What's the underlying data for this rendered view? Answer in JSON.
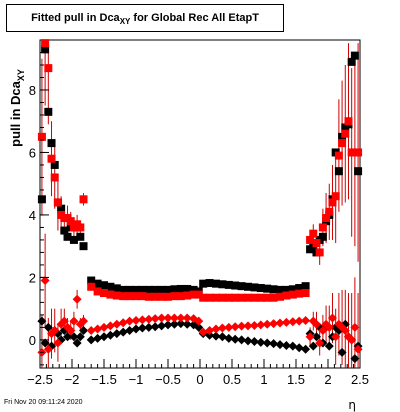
{
  "title": {
    "prefix": "Fitted pull in Dca",
    "subscript": "XY",
    "suffix": " for Global Rec All EtapT"
  },
  "footer_timestamp": "Fri Nov 20 09:11:24 2020",
  "chart_data": {
    "type": "scatter",
    "xlabel": "η",
    "ylabel": "pull in Dca",
    "ylabel_subscript": "XY",
    "xlim": [
      -2.5,
      2.5
    ],
    "ylim": [
      -0.9,
      9.6
    ],
    "xticks": [
      -2.5,
      -2,
      -1.5,
      -1,
      -0.5,
      0,
      0.5,
      1,
      1.5,
      2,
      2.5
    ],
    "xtick_labels": [
      "−2.5",
      "−2",
      "−1.5",
      "−1",
      "−0.5",
      "0",
      "0.5",
      "1",
      "1.5",
      "2",
      "2.5"
    ],
    "yticks": [
      0,
      2,
      4,
      6,
      8
    ],
    "ytick_labels": [
      "0",
      "2",
      "4",
      "6",
      "8"
    ],
    "grid": false,
    "legend": "none",
    "colors": {
      "black_series": "#000000",
      "red_series": "#ff0000",
      "error_bars": "#cc0000"
    },
    "series": [
      {
        "color": "#000000",
        "marker": "square",
        "x": [
          -2.47,
          -2.42,
          -2.37,
          -2.32,
          -2.27,
          -2.22,
          -2.17,
          -2.12,
          -2.07,
          -2.02,
          -1.97,
          -1.92,
          -1.87,
          -1.82,
          -1.7,
          -1.6,
          -1.5,
          -1.4,
          -1.3,
          -1.2,
          -1.1,
          -1.0,
          -0.9,
          -0.8,
          -0.7,
          -0.6,
          -0.5,
          -0.4,
          -0.3,
          -0.2,
          -0.1,
          -0.02,
          0.05,
          0.15,
          0.25,
          0.35,
          0.45,
          0.55,
          0.65,
          0.75,
          0.85,
          0.95,
          1.05,
          1.15,
          1.25,
          1.35,
          1.45,
          1.55,
          1.65,
          1.72,
          1.77,
          1.82,
          1.87,
          1.92,
          1.97,
          2.02,
          2.07,
          2.12,
          2.17,
          2.22,
          2.27,
          2.32,
          2.37,
          2.42,
          2.47
        ],
        "y": [
          4.5,
          9.3,
          7.3,
          6.3,
          5.6,
          4.4,
          4.2,
          3.5,
          3.3,
          3.6,
          3.2,
          3.6,
          3.3,
          3.0,
          1.9,
          1.8,
          1.75,
          1.7,
          1.65,
          1.6,
          1.6,
          1.6,
          1.6,
          1.6,
          1.6,
          1.6,
          1.6,
          1.62,
          1.63,
          1.63,
          1.6,
          1.55,
          1.8,
          1.82,
          1.8,
          1.78,
          1.76,
          1.74,
          1.72,
          1.7,
          1.68,
          1.66,
          1.64,
          1.62,
          1.6,
          1.6,
          1.62,
          1.66,
          1.72,
          2.9,
          3.0,
          2.8,
          3.2,
          3.3,
          3.8,
          4.0,
          4.5,
          6.0,
          5.4,
          6.5,
          6.8,
          6.9,
          8.9,
          9.1,
          5.4
        ]
      },
      {
        "color": "#ff0000",
        "marker": "square",
        "x": [
          -2.47,
          -2.42,
          -2.37,
          -2.32,
          -2.27,
          -2.22,
          -2.17,
          -2.12,
          -2.07,
          -2.02,
          -1.97,
          -1.92,
          -1.87,
          -1.82,
          -1.7,
          -1.6,
          -1.5,
          -1.4,
          -1.3,
          -1.2,
          -1.1,
          -1.0,
          -0.9,
          -0.8,
          -0.7,
          -0.6,
          -0.5,
          -0.4,
          -0.3,
          -0.2,
          -0.1,
          -0.02,
          0.05,
          0.15,
          0.25,
          0.35,
          0.45,
          0.55,
          0.65,
          0.75,
          0.85,
          0.95,
          1.05,
          1.15,
          1.25,
          1.35,
          1.45,
          1.55,
          1.65,
          1.72,
          1.77,
          1.82,
          1.87,
          1.92,
          1.97,
          2.02,
          2.07,
          2.12,
          2.17,
          2.22,
          2.27,
          2.32,
          2.37,
          2.42,
          2.47
        ],
        "y": [
          6.5,
          9.5,
          8.7,
          5.8,
          5.2,
          4.4,
          4.0,
          3.9,
          3.9,
          3.8,
          3.6,
          3.7,
          3.6,
          4.5,
          1.7,
          1.55,
          1.5,
          1.45,
          1.42,
          1.4,
          1.4,
          1.4,
          1.4,
          1.38,
          1.38,
          1.38,
          1.38,
          1.4,
          1.4,
          1.42,
          1.45,
          1.45,
          1.35,
          1.35,
          1.35,
          1.35,
          1.35,
          1.35,
          1.35,
          1.35,
          1.35,
          1.35,
          1.35,
          1.35,
          1.38,
          1.42,
          1.45,
          1.48,
          1.5,
          3.2,
          3.4,
          3.1,
          2.8,
          3.6,
          3.9,
          4.1,
          4.4,
          4.6,
          5.9,
          6.3,
          6.6,
          7.0,
          6.0,
          6.0,
          6.0
        ],
        "err_y": [
          2.5,
          2.0,
          1.8,
          1.2,
          1.0,
          0.9,
          0.6,
          0.4,
          0.4,
          0.3,
          0.3,
          0.3,
          0.2,
          0.2,
          0.05,
          0.05,
          0.05,
          0.05,
          0.05,
          0.05,
          0.05,
          0.05,
          0.05,
          0.05,
          0.05,
          0.05,
          0.05,
          0.05,
          0.05,
          0.05,
          0.05,
          0.05,
          0.05,
          0.05,
          0.05,
          0.05,
          0.05,
          0.05,
          0.05,
          0.05,
          0.05,
          0.05,
          0.05,
          0.05,
          0.05,
          0.05,
          0.05,
          0.05,
          0.05,
          0.3,
          0.3,
          0.4,
          0.4,
          0.6,
          0.8,
          0.9,
          1.2,
          1.5,
          1.8,
          2.0,
          2.2,
          2.5,
          2.7,
          3.0,
          3.5
        ]
      },
      {
        "color": "#000000",
        "marker": "diamond",
        "x": [
          -2.47,
          -2.42,
          -2.37,
          -2.32,
          -2.27,
          -2.22,
          -2.17,
          -2.12,
          -2.07,
          -2.02,
          -1.97,
          -1.92,
          -1.87,
          -1.82,
          -1.7,
          -1.6,
          -1.5,
          -1.4,
          -1.3,
          -1.2,
          -1.1,
          -1.0,
          -0.9,
          -0.8,
          -0.7,
          -0.6,
          -0.5,
          -0.4,
          -0.3,
          -0.2,
          -0.1,
          -0.02,
          0.05,
          0.15,
          0.25,
          0.35,
          0.45,
          0.55,
          0.65,
          0.75,
          0.85,
          0.95,
          1.05,
          1.15,
          1.25,
          1.35,
          1.45,
          1.55,
          1.65,
          1.72,
          1.77,
          1.82,
          1.87,
          1.92,
          1.97,
          2.02,
          2.07,
          2.12,
          2.17,
          2.22,
          2.27,
          2.32,
          2.37,
          2.42,
          2.47
        ],
        "y": [
          0.6,
          -0.1,
          0.4,
          -0.2,
          0.3,
          0.2,
          0.0,
          0.3,
          0.1,
          0.3,
          0.1,
          -0.1,
          0.1,
          0.3,
          0.0,
          0.05,
          0.1,
          0.15,
          0.2,
          0.25,
          0.3,
          0.35,
          0.38,
          0.4,
          0.42,
          0.45,
          0.48,
          0.5,
          0.52,
          0.5,
          0.48,
          0.4,
          0.2,
          0.15,
          0.12,
          0.1,
          0.05,
          0.02,
          0.0,
          -0.03,
          -0.05,
          -0.08,
          -0.1,
          -0.12,
          -0.15,
          -0.18,
          -0.2,
          -0.25,
          -0.3,
          0.2,
          -0.2,
          0.1,
          0.4,
          -0.1,
          0.4,
          -0.2,
          0.1,
          0.4,
          0.3,
          -0.4,
          0.5,
          0.1,
          0.0,
          -0.6,
          -0.2
        ]
      },
      {
        "color": "#ff0000",
        "marker": "diamond",
        "x": [
          -2.47,
          -2.42,
          -2.37,
          -2.32,
          -2.27,
          -2.22,
          -2.17,
          -2.12,
          -2.07,
          -2.02,
          -1.97,
          -1.92,
          -1.87,
          -1.82,
          -1.7,
          -1.6,
          -1.5,
          -1.4,
          -1.3,
          -1.2,
          -1.1,
          -1.0,
          -0.9,
          -0.8,
          -0.7,
          -0.6,
          -0.5,
          -0.4,
          -0.3,
          -0.2,
          -0.1,
          -0.02,
          0.05,
          0.15,
          0.25,
          0.35,
          0.45,
          0.55,
          0.65,
          0.75,
          0.85,
          0.95,
          1.05,
          1.15,
          1.25,
          1.35,
          1.45,
          1.55,
          1.65,
          1.72,
          1.77,
          1.82,
          1.87,
          1.92,
          1.97,
          2.02,
          2.07,
          2.12,
          2.17,
          2.22,
          2.27,
          2.32,
          2.37,
          2.42,
          2.47
        ],
        "y": [
          -0.4,
          1.9,
          -0.3,
          0.2,
          0.3,
          -0.1,
          0.5,
          0.6,
          0.4,
          0.3,
          0.6,
          1.3,
          0.5,
          0.6,
          0.3,
          0.35,
          0.4,
          0.45,
          0.5,
          0.55,
          0.6,
          0.62,
          0.64,
          0.66,
          0.68,
          0.7,
          0.7,
          0.7,
          0.7,
          0.7,
          0.68,
          0.6,
          0.25,
          0.3,
          0.35,
          0.38,
          0.4,
          0.42,
          0.44,
          0.45,
          0.46,
          0.48,
          0.5,
          0.52,
          0.54,
          0.56,
          0.58,
          0.6,
          0.62,
          0.1,
          0.6,
          0.5,
          -0.1,
          0.3,
          0.5,
          0.4,
          0.7,
          0.1,
          0.5,
          0.4,
          0.3,
          0.1,
          0.0,
          0.4,
          -0.3
        ],
        "err_y": [
          1.2,
          1.5,
          1.0,
          0.8,
          0.7,
          0.6,
          0.5,
          0.4,
          0.3,
          0.3,
          0.3,
          0.3,
          0.2,
          0.2,
          0.05,
          0.05,
          0.05,
          0.05,
          0.05,
          0.05,
          0.05,
          0.05,
          0.05,
          0.05,
          0.05,
          0.05,
          0.05,
          0.05,
          0.05,
          0.05,
          0.05,
          0.05,
          0.05,
          0.05,
          0.05,
          0.05,
          0.05,
          0.05,
          0.05,
          0.05,
          0.05,
          0.05,
          0.05,
          0.05,
          0.05,
          0.05,
          0.05,
          0.05,
          0.05,
          0.3,
          0.3,
          0.4,
          0.4,
          0.5,
          0.6,
          0.7,
          0.8,
          0.9,
          1.0,
          1.2,
          1.3,
          1.4,
          1.5,
          1.6,
          1.8
        ]
      }
    ]
  }
}
